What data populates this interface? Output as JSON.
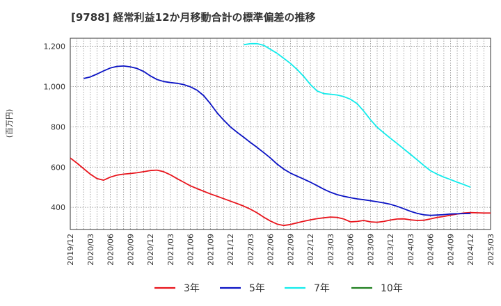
{
  "chart_data": {
    "type": "line",
    "title": "[9788]  経常利益12か月移動合計の標準偏差の推移",
    "ylabel": "(百万円)",
    "xlabel": "",
    "ylim": [
      290,
      1240
    ],
    "yticks": [
      400,
      600,
      800,
      1000,
      1200
    ],
    "ytick_labels": [
      "400",
      "600",
      "800",
      "1,000",
      "1,200"
    ],
    "xlim": [
      "2019-12",
      "2025-03"
    ],
    "xtick_labels": [
      "2019/12",
      "2020/03",
      "2020/06",
      "2020/09",
      "2020/12",
      "2021/03",
      "2021/06",
      "2021/09",
      "2021/12",
      "2022/03",
      "2022/06",
      "2022/09",
      "2022/12",
      "2023/03",
      "2023/06",
      "2023/09",
      "2023/12",
      "2024/03",
      "2024/06",
      "2024/09",
      "2024/12",
      "2025/03"
    ],
    "grid": true,
    "legend_position": "bottom",
    "series": [
      {
        "name": "3年",
        "color": "#e8141c",
        "start": "2019-12",
        "values": [
          645,
          620,
          592,
          565,
          543,
          535,
          550,
          560,
          565,
          568,
          572,
          577,
          583,
          585,
          577,
          562,
          543,
          525,
          507,
          493,
          480,
          467,
          455,
          443,
          431,
          419,
          406,
          391,
          373,
          351,
          332,
          317,
          310,
          315,
          323,
          331,
          338,
          344,
          348,
          352,
          350,
          342,
          328,
          330,
          335,
          328,
          326,
          330,
          337,
          342,
          343,
          338,
          335,
          336,
          343,
          350,
          355,
          361,
          367,
          372,
          374,
          373,
          372,
          372
        ]
      },
      {
        "name": "5年",
        "color": "#0a12c4",
        "start": "2020-02",
        "values": [
          1040,
          1048,
          1062,
          1078,
          1092,
          1100,
          1102,
          1098,
          1090,
          1075,
          1053,
          1035,
          1025,
          1020,
          1016,
          1010,
          999,
          982,
          955,
          915,
          870,
          833,
          800,
          773,
          748,
          722,
          698,
          672,
          645,
          615,
          590,
          570,
          555,
          540,
          525,
          508,
          490,
          475,
          463,
          455,
          448,
          442,
          438,
          433,
          428,
          422,
          415,
          405,
          393,
          380,
          370,
          363,
          360,
          362,
          364,
          367,
          368,
          369,
          370
        ]
      },
      {
        "name": "7年",
        "color": "#12ebeb",
        "start": "2022-02",
        "values": [
          1208,
          1213,
          1213,
          1205,
          1185,
          1165,
          1140,
          1115,
          1085,
          1050,
          1010,
          978,
          965,
          962,
          958,
          950,
          937,
          915,
          878,
          835,
          798,
          770,
          743,
          717,
          690,
          663,
          636,
          608,
          582,
          565,
          550,
          538,
          525,
          513,
          500
        ]
      },
      {
        "name": "10年",
        "color": "#1f7f1f",
        "start": "2019-12",
        "values": []
      }
    ]
  }
}
